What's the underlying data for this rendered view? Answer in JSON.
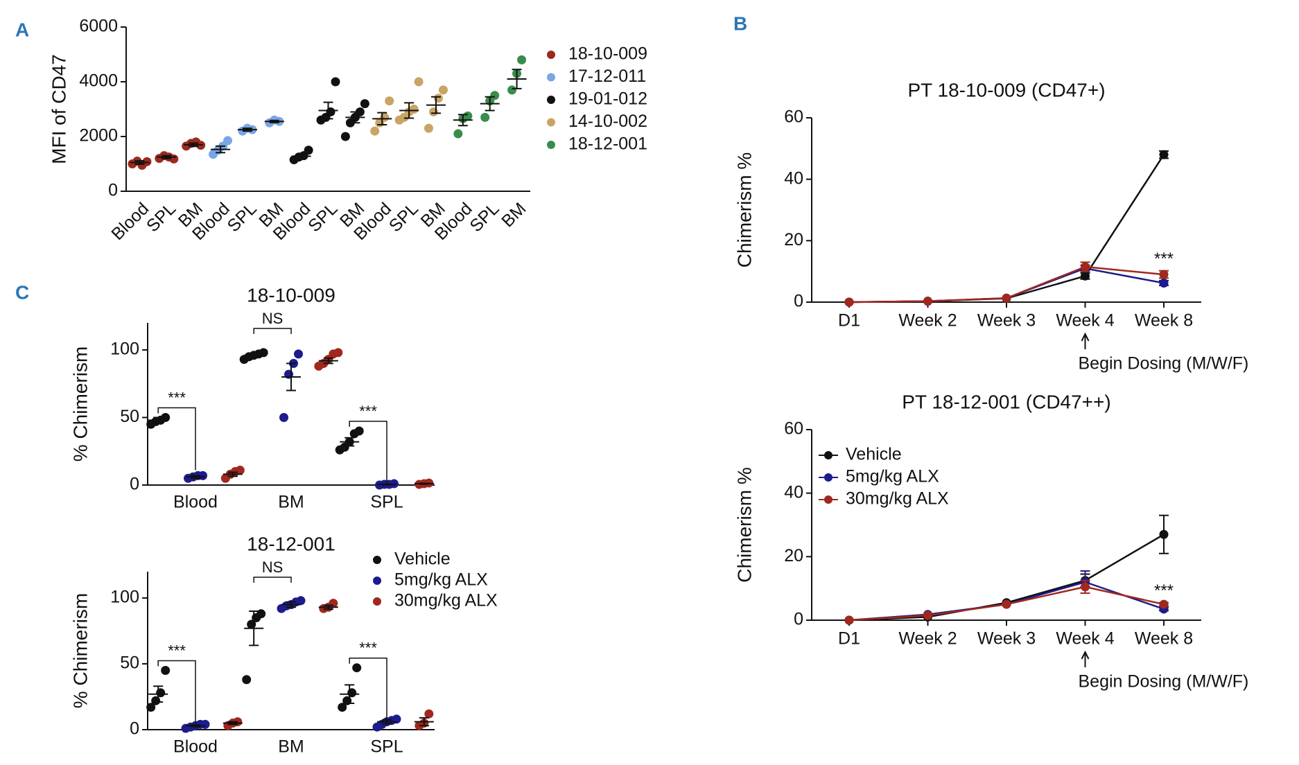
{
  "chart_data": [
    {
      "type": "dotplot",
      "panel": "A",
      "ylabel": "MFI of CD47",
      "categories": [
        "Blood",
        "SPL",
        "BM",
        "Blood",
        "SPL",
        "BM",
        "Blood",
        "SPL",
        "BM",
        "Blood",
        "SPL",
        "BM",
        "Blood",
        "SPL",
        "BM"
      ],
      "ylim": [
        0,
        6000
      ],
      "yticks": [
        0,
        2000,
        4000,
        6000
      ],
      "legend": "right",
      "series": [
        {
          "name": "18-10-009",
          "color": "#9b2a1f",
          "values": [
            1050,
            1250,
            1700,
            null,
            null,
            null,
            null,
            null,
            null,
            null,
            null,
            null,
            null,
            null,
            null
          ],
          "errors": [
            60,
            50,
            60,
            null,
            null,
            null,
            null,
            null,
            null,
            null,
            null,
            null,
            null,
            null,
            null
          ],
          "points": [
            [
              1000,
              1100,
              950,
              1080
            ],
            [
              1200,
              1300,
              1250,
              1180
            ],
            [
              1650,
              1750,
              1800,
              1680
            ],
            [],
            [],
            [],
            [],
            [],
            [],
            [],
            [],
            [],
            [],
            [],
            []
          ]
        },
        {
          "name": "17-12-011",
          "color": "#7aa6e6",
          "values": [
            null,
            null,
            null,
            1530,
            2250,
            2550,
            null,
            null,
            null,
            null,
            null,
            null,
            null,
            null,
            null
          ],
          "errors": [
            null,
            null,
            null,
            120,
            50,
            40,
            null,
            null,
            null,
            null,
            null,
            null,
            null,
            null,
            null
          ],
          "points": [
            [],
            [],
            [],
            [
              1350,
              1500,
              1650,
              1850
            ],
            [
              2200,
              2300,
              2250
            ],
            [
              2500,
              2600,
              2550
            ],
            [],
            [],
            [],
            [],
            [],
            [],
            [],
            [],
            []
          ]
        },
        {
          "name": "19-01-012",
          "color": "#111111",
          "values": [
            null,
            null,
            null,
            null,
            null,
            null,
            1280,
            2950,
            2700,
            null,
            null,
            null,
            null,
            null,
            null
          ],
          "errors": [
            null,
            null,
            null,
            null,
            null,
            null,
            80,
            300,
            200,
            null,
            null,
            null,
            null,
            null,
            null
          ],
          "points": [
            [],
            [],
            [],
            [],
            [],
            [],
            [
              1150,
              1250,
              1300,
              1500
            ],
            [
              2600,
              2700,
              2900,
              4000
            ],
            [
              2000,
              2500,
              2700,
              2900,
              3200
            ],
            [],
            [],
            [],
            [],
            [],
            []
          ]
        },
        {
          "name": "14-10-002",
          "color": "#c9a464",
          "values": [
            null,
            null,
            null,
            null,
            null,
            null,
            null,
            null,
            null,
            2650,
            2950,
            3150,
            null,
            null,
            null
          ],
          "errors": [
            null,
            null,
            null,
            null,
            null,
            null,
            null,
            null,
            null,
            220,
            280,
            300,
            null,
            null,
            null
          ],
          "points": [
            [],
            [],
            [],
            [],
            [],
            [],
            [],
            [],
            [],
            [
              2200,
              2500,
              2700,
              3300
            ],
            [
              2600,
              2700,
              2900,
              3000,
              4000
            ],
            [
              2300,
              2900,
              3400,
              3700
            ],
            [],
            [],
            []
          ]
        },
        {
          "name": "18-12-001",
          "color": "#3a8c4c",
          "values": [
            null,
            null,
            null,
            null,
            null,
            null,
            null,
            null,
            null,
            null,
            null,
            null,
            2600,
            3200,
            4100
          ],
          "errors": [
            null,
            null,
            null,
            null,
            null,
            null,
            null,
            null,
            null,
            null,
            null,
            null,
            200,
            250,
            350
          ],
          "points": [
            [],
            [],
            [],
            [],
            [],
            [],
            [],
            [],
            [],
            [],
            [],
            [],
            [
              2100,
              2650,
              2750
            ],
            [
              2700,
              3300,
              3500
            ],
            [
              3700,
              4300,
              4800
            ]
          ]
        }
      ]
    },
    {
      "type": "dotplot",
      "panel": "C",
      "title": "18-10-009",
      "ylabel": "% Chimerism",
      "categories": [
        "Blood",
        "BM",
        "SPL"
      ],
      "comparison_labels": [
        "***",
        "NS",
        "***"
      ],
      "ylim": [
        0,
        120
      ],
      "yticks": [
        0,
        50,
        100
      ],
      "series": [
        {
          "color": "#111111",
          "values": [
            48,
            96,
            32
          ],
          "errors": [
            2,
            1,
            3
          ],
          "points": [
            [
              45,
              47,
              48,
              50
            ],
            [
              93,
              95,
              96,
              97,
              98
            ],
            [
              26,
              28,
              32,
              38,
              40
            ]
          ]
        },
        {
          "color": "#1c1c8c",
          "values": [
            6,
            80,
            0.5
          ],
          "errors": [
            1,
            10,
            0.3
          ],
          "points": [
            [
              5,
              6,
              7,
              7
            ],
            [
              50,
              82,
              90,
              97
            ],
            [
              0,
              0.5,
              0.5,
              1
            ]
          ]
        },
        {
          "color": "#a0281e",
          "values": [
            8,
            92,
            1
          ],
          "errors": [
            1.5,
            2,
            0.3
          ],
          "points": [
            [
              5,
              8,
              10,
              11
            ],
            [
              88,
              90,
              93,
              97,
              98
            ],
            [
              0.5,
              1,
              1.5
            ]
          ]
        }
      ]
    },
    {
      "type": "dotplot",
      "title": "18-12-001",
      "ylabel": "% Chimerism",
      "categories": [
        "Blood",
        "BM",
        "SPL"
      ],
      "comparison_labels": [
        "***",
        "NS",
        "***"
      ],
      "ylim": [
        0,
        120
      ],
      "yticks": [
        0,
        50,
        100
      ],
      "legend": "upper right",
      "series": [
        {
          "name": "Vehicle",
          "color": "#111111",
          "values": [
            27,
            77,
            27
          ],
          "errors": [
            6,
            13,
            7
          ],
          "points": [
            [
              17,
              22,
              28,
              45
            ],
            [
              38,
              80,
              85,
              88
            ],
            [
              17,
              22,
              28,
              47
            ]
          ]
        },
        {
          "name": "5mg/kg ALX",
          "color": "#1c1c8c",
          "values": [
            3,
            95,
            6
          ],
          "errors": [
            0.6,
            2,
            1.5
          ],
          "points": [
            [
              1,
              2,
              3,
              4,
              4
            ],
            [
              92,
              94,
              95,
              97,
              98
            ],
            [
              2,
              4,
              6,
              7,
              8
            ]
          ]
        },
        {
          "name": "30mg/kg ALX",
          "color": "#a0281e",
          "values": [
            5,
            93,
            6
          ],
          "errors": [
            1,
            1.5,
            3
          ],
          "points": [
            [
              3,
              5,
              6
            ],
            [
              92,
              93,
              96
            ],
            [
              3,
              5,
              12
            ]
          ]
        }
      ]
    },
    {
      "type": "line",
      "panel": "B",
      "title": "PT 18-10-009 (CD47+)",
      "ylabel": "Chimerism %",
      "categories": [
        "D1",
        "Week 2",
        "Week 3",
        "Week 4",
        "Week 8"
      ],
      "ylim": [
        0,
        60
      ],
      "yticks": [
        0,
        20,
        40,
        60
      ],
      "annotation": "***",
      "note": "Begin Dosing (M/W/F)",
      "series": [
        {
          "color": "#111111",
          "values": [
            0,
            0.3,
            1.2,
            8.5,
            48
          ],
          "errors": [
            0,
            0,
            0,
            1,
            1.2
          ]
        },
        {
          "color": "#1c1c8c",
          "values": [
            0,
            0.3,
            1.3,
            11,
            6.2
          ],
          "errors": [
            0,
            0,
            0,
            1,
            0.8
          ]
        },
        {
          "color": "#a0281e",
          "values": [
            0,
            0.3,
            1.3,
            11.5,
            9
          ],
          "errors": [
            0,
            0,
            0,
            1.5,
            1.2
          ]
        }
      ]
    },
    {
      "type": "line",
      "title": "PT 18-12-001 (CD47++)",
      "ylabel": "Chimerism %",
      "categories": [
        "D1",
        "Week 2",
        "Week 3",
        "Week 4",
        "Week 8"
      ],
      "ylim": [
        0,
        60
      ],
      "yticks": [
        0,
        20,
        40,
        60
      ],
      "annotation": "***",
      "note": "Begin Dosing (M/W/F)",
      "legend": "upper left",
      "series": [
        {
          "name": "Vehicle",
          "color": "#111111",
          "values": [
            0,
            1,
            5.5,
            12.5,
            27
          ],
          "errors": [
            0,
            0,
            0,
            2,
            6
          ]
        },
        {
          "name": "5mg/kg ALX",
          "color": "#1c1c8c",
          "values": [
            0,
            1.8,
            5,
            12,
            3.5
          ],
          "errors": [
            0,
            0,
            0,
            3.5,
            0.5
          ]
        },
        {
          "name": "30mg/kg ALX",
          "color": "#a0281e",
          "values": [
            0,
            1.5,
            5,
            10.5,
            5
          ],
          "errors": [
            0,
            0,
            0,
            2,
            0.5
          ]
        }
      ]
    }
  ]
}
